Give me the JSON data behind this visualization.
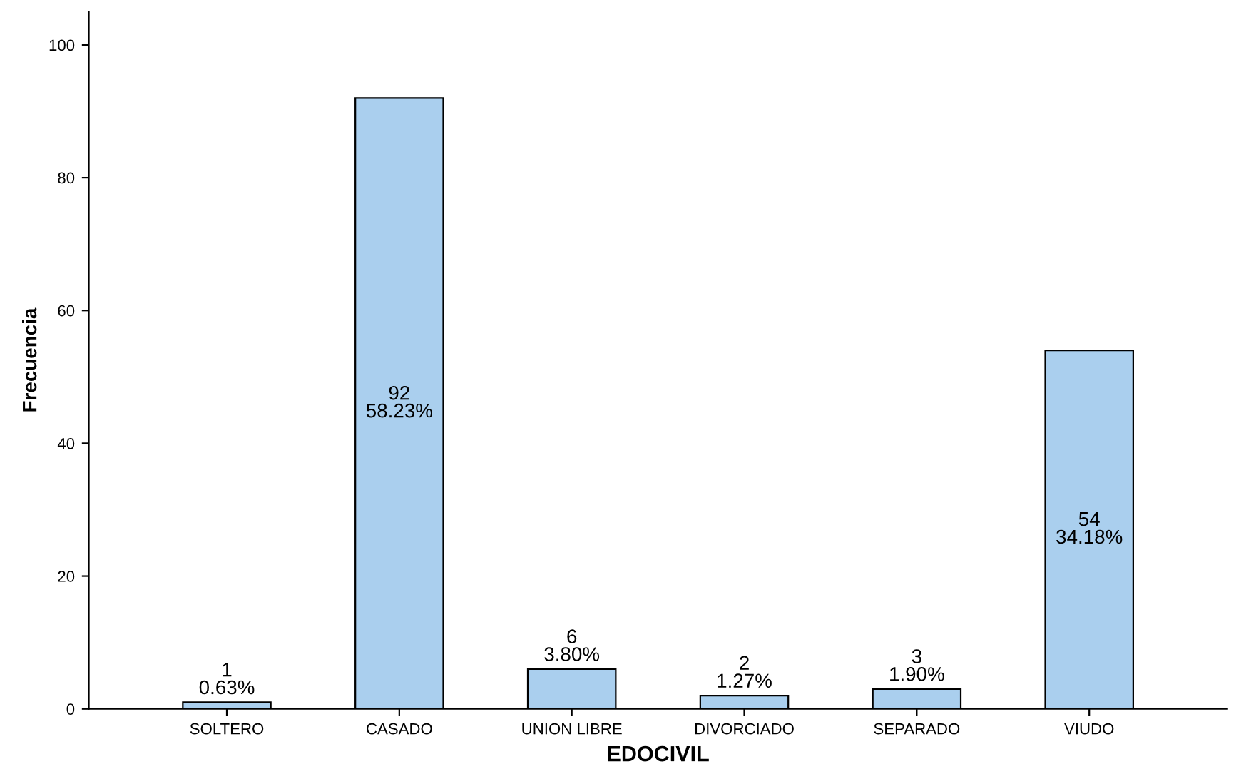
{
  "chart_data": {
    "type": "bar",
    "xlabel": "EDOCIVIL",
    "ylabel": "Frecuencia",
    "categories": [
      "SOLTERO",
      "CASADO",
      "UNION LIBRE",
      "DIVORCIADO",
      "SEPARADO",
      "VIUDO"
    ],
    "values": [
      1,
      92,
      6,
      2,
      3,
      54
    ],
    "value_labels": [
      "1\n0.63%",
      "92\n58.23%",
      "6\n3.80%",
      "2\n1.27%",
      "3\n1.90%",
      "54\n34.18%"
    ],
    "color": "#aacfee",
    "ylim": [
      0,
      105
    ],
    "yticks": [
      0,
      20,
      40,
      60,
      80,
      100
    ],
    "grid": false
  }
}
